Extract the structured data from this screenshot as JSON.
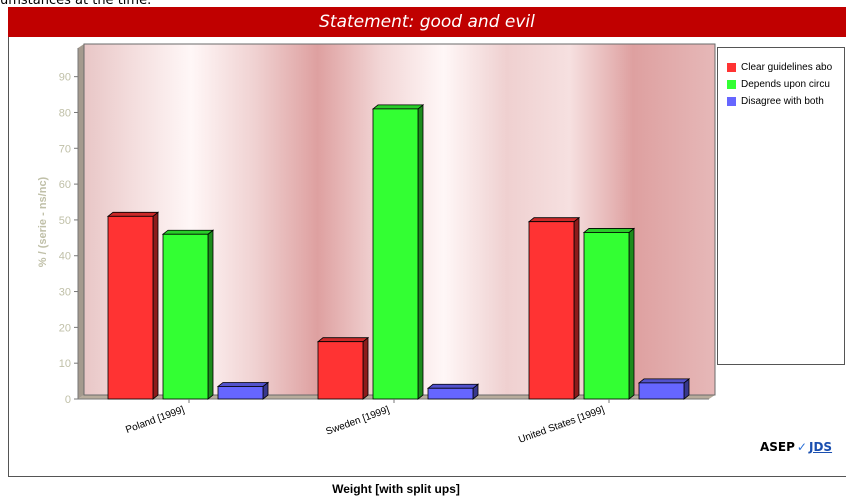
{
  "page": {
    "top_text": "umstances at the time."
  },
  "chart_data": {
    "type": "bar",
    "title": "Statement: good and evil",
    "xlabel": "Weight [with split ups]",
    "ylabel": "% / (serie - ns/nc)",
    "ylim": [
      0,
      98
    ],
    "yticks": [
      0,
      10,
      20,
      30,
      40,
      50,
      60,
      70,
      80,
      90
    ],
    "categories": [
      "Poland [1999]",
      "Sweden [1999]",
      "United States [1999]"
    ],
    "series": [
      {
        "name": "Clear guidelines abo",
        "color": "#ff3333",
        "values": [
          51,
          16,
          49.5
        ]
      },
      {
        "name": "Depends upon circu",
        "color": "#33ff33",
        "values": [
          46,
          81,
          46.5
        ]
      },
      {
        "name": "Disagree with both",
        "color": "#6666ff",
        "values": [
          3.5,
          3,
          4.5
        ]
      }
    ],
    "grid": false,
    "legend_position": "right"
  },
  "logo": {
    "asep": "ASEP",
    "check": "✓",
    "jds": "JDS"
  },
  "colors": {
    "title_bar": "#c00000",
    "axis_text": "#b8b8a0"
  }
}
